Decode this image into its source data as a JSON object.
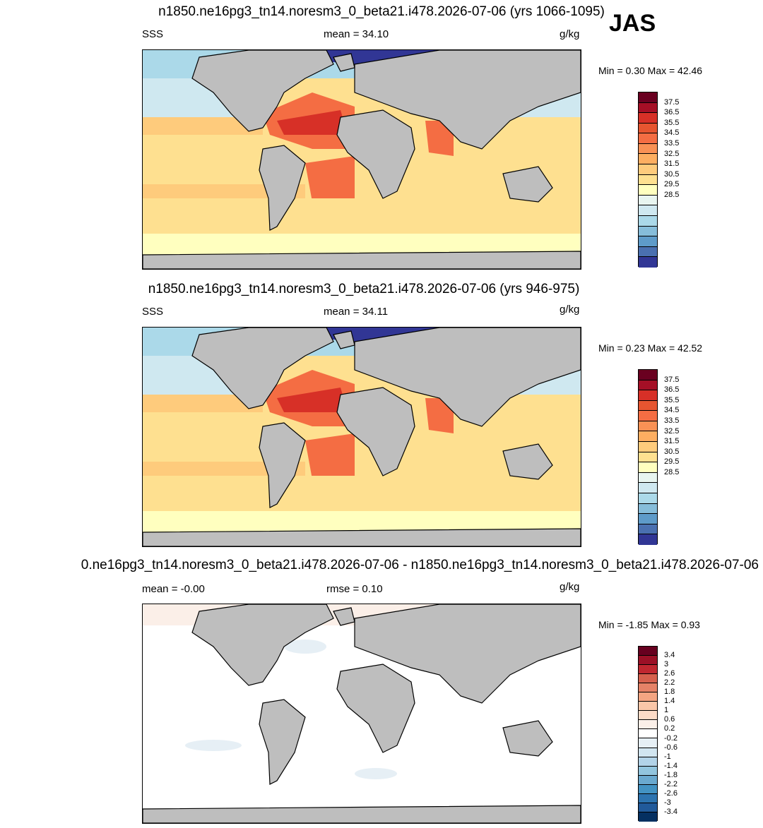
{
  "season": "JAS",
  "panels": [
    {
      "title": "n1850.ne16pg3_tn14.noresm3_0_beta21.i478.2026-07-06 (yrs 1066-1095)",
      "left_label": "SSS",
      "center_label": "mean =  34.10",
      "units": "g/kg",
      "min_max": "Min =   0.30 Max =  42.46",
      "colorbar_labels": [
        "37.5",
        "36.5",
        "35.5",
        "34.5",
        "33.5",
        "32.5",
        "31.5",
        "30.5",
        "29.5",
        "28.5"
      ]
    },
    {
      "title": "n1850.ne16pg3_tn14.noresm3_0_beta21.i478.2026-07-06 (yrs 946-975)",
      "left_label": "SSS",
      "center_label": "mean =  34.11",
      "units": "g/kg",
      "min_max": "Min =   0.23 Max =  42.52",
      "colorbar_labels": [
        "37.5",
        "36.5",
        "35.5",
        "34.5",
        "33.5",
        "32.5",
        "31.5",
        "30.5",
        "29.5",
        "28.5"
      ]
    },
    {
      "title": "0.ne16pg3_tn14.noresm3_0_beta21.i478.2026-07-06 - n1850.ne16pg3_tn14.noresm3_0_beta21.i478.2026-07-06",
      "left_label": "mean =  -0.00",
      "center_label": "rmse =   0.10",
      "units": "g/kg",
      "min_max": "Min =  -1.85 Max =   0.93",
      "colorbar_labels": [
        "3.4",
        "3",
        "2.6",
        "2.2",
        "1.8",
        "1.4",
        "1",
        "0.6",
        "0.2",
        "-0.2",
        "-0.6",
        "-1",
        "-1.4",
        "-1.8",
        "-2.2",
        "-2.6",
        "-3",
        "-3.4"
      ]
    }
  ],
  "colors": {
    "sss_scale": [
      "#6a0020",
      "#a50f26",
      "#d73027",
      "#e65530",
      "#f46d43",
      "#f99155",
      "#fdae61",
      "#fecb7c",
      "#fee090",
      "#ffffbf",
      "#e8f5f0",
      "#cfe8f0",
      "#abd9e9",
      "#86bdda",
      "#5e9bc9",
      "#4a70b0",
      "#313695"
    ],
    "diff_scale": [
      "#67001f",
      "#9b1026",
      "#c02730",
      "#d6604d",
      "#e58267",
      "#f4a582",
      "#f9c6a8",
      "#fddbc7",
      "#fbefe8",
      "#ffffff",
      "#e6eff5",
      "#d1e5f0",
      "#b2d3e8",
      "#92c5de",
      "#6aa9cf",
      "#4393c3",
      "#2d74b0",
      "#215a9a",
      "#053061"
    ],
    "land": "#bebebe"
  }
}
